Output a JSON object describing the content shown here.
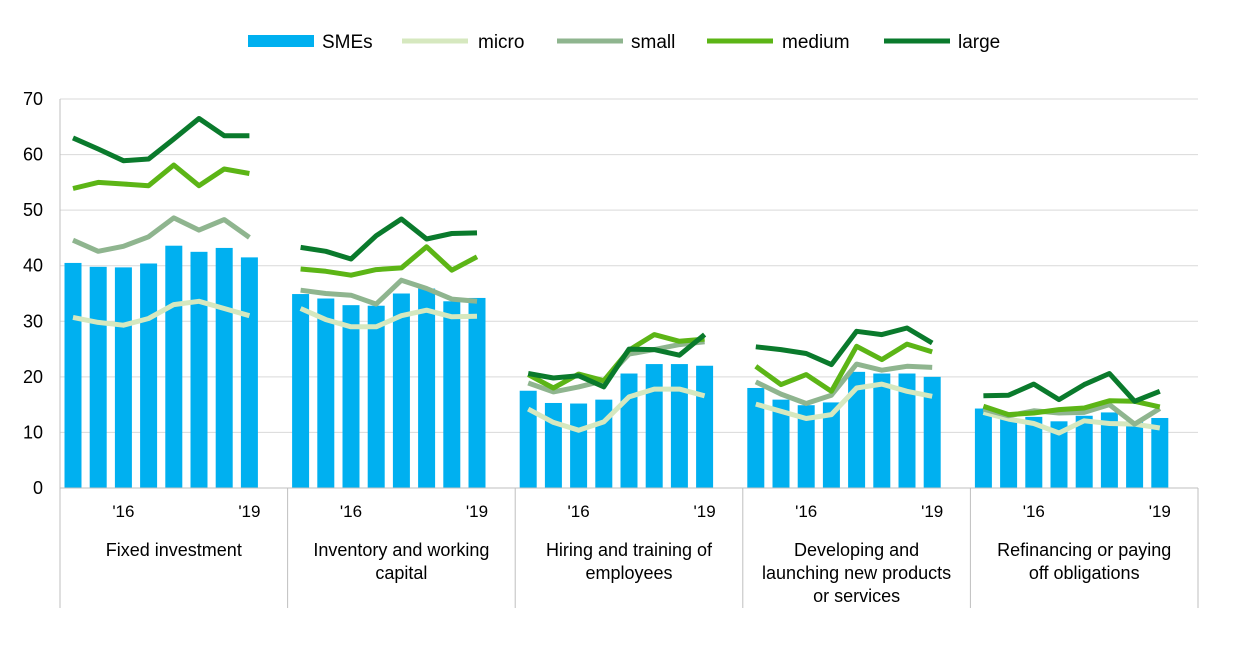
{
  "chart_data": {
    "type": "bar",
    "title": "",
    "xlabel": "",
    "ylabel": "",
    "ylim": [
      0,
      70
    ],
    "yticks": [
      0,
      10,
      20,
      30,
      40,
      50,
      60,
      70
    ],
    "grid": true,
    "legend_position": "top-center",
    "year_labels": [
      "'16",
      "'19"
    ],
    "groups": [
      {
        "label_lines": [
          "Fixed investment"
        ],
        "SMEs": [
          40.5,
          39.8,
          39.7,
          40.4,
          43.6,
          42.5,
          43.2,
          41.5
        ],
        "micro": [
          30.7,
          29.8,
          29.3,
          30.5,
          33.0,
          33.6,
          32.3,
          31.0
        ],
        "small": [
          44.6,
          42.6,
          43.5,
          45.2,
          48.6,
          46.4,
          48.3,
          45.1
        ],
        "medium": [
          53.9,
          55.0,
          54.7,
          54.4,
          58.1,
          54.4,
          57.4,
          56.6
        ],
        "large": [
          63.0,
          61.0,
          58.9,
          59.2,
          62.8,
          66.5,
          63.4,
          63.4
        ]
      },
      {
        "label_lines": [
          "Inventory and working",
          "capital"
        ],
        "SMEs": [
          34.9,
          34.1,
          32.9,
          32.8,
          35.0,
          35.9,
          33.6,
          34.2
        ],
        "micro": [
          32.3,
          30.3,
          29.0,
          29.0,
          31.0,
          32.0,
          30.8,
          30.9
        ],
        "small": [
          35.6,
          35.0,
          34.7,
          33.1,
          37.4,
          35.9,
          34.0,
          33.6
        ],
        "medium": [
          39.4,
          39.0,
          38.3,
          39.3,
          39.6,
          43.4,
          39.2,
          41.6
        ],
        "large": [
          43.3,
          42.6,
          41.2,
          45.4,
          48.4,
          44.8,
          45.8,
          45.9
        ]
      },
      {
        "label_lines": [
          "Hiring and training of",
          "employees"
        ],
        "SMEs": [
          17.5,
          15.3,
          15.2,
          15.9,
          20.6,
          22.3,
          22.3,
          22.0
        ],
        "micro": [
          14.2,
          11.8,
          10.4,
          11.9,
          16.4,
          17.8,
          17.8,
          16.6
        ],
        "small": [
          18.9,
          17.3,
          18.2,
          19.3,
          24.1,
          24.9,
          25.8,
          26.3
        ],
        "medium": [
          20.4,
          18.0,
          20.5,
          19.3,
          24.8,
          27.6,
          26.4,
          26.8
        ],
        "large": [
          20.6,
          19.8,
          20.2,
          18.2,
          25.0,
          24.9,
          23.9,
          27.6
        ]
      },
      {
        "label_lines": [
          "Developing and",
          "launching new products",
          "or services"
        ],
        "SMEs": [
          18.0,
          15.9,
          14.9,
          15.4,
          20.9,
          20.6,
          20.6,
          20.0
        ],
        "micro": [
          15.1,
          13.8,
          12.5,
          13.2,
          18.0,
          18.7,
          17.4,
          16.5
        ],
        "small": [
          19.1,
          16.9,
          15.2,
          16.7,
          22.3,
          21.2,
          21.9,
          21.7
        ],
        "medium": [
          21.9,
          18.6,
          20.4,
          17.4,
          25.5,
          23.1,
          25.9,
          24.5
        ],
        "large": [
          25.4,
          24.9,
          24.2,
          22.2,
          28.2,
          27.6,
          28.8,
          26.1
        ]
      },
      {
        "label_lines": [
          "Refinancing or paying",
          "off obligations"
        ],
        "SMEs": [
          14.3,
          12.5,
          12.8,
          12.0,
          13.0,
          13.6,
          12.0,
          12.6
        ],
        "micro": [
          13.6,
          12.4,
          11.6,
          9.9,
          12.1,
          11.6,
          11.5,
          10.8
        ],
        "small": [
          14.2,
          13.0,
          13.9,
          13.5,
          13.6,
          15.0,
          11.5,
          14.3
        ],
        "medium": [
          14.7,
          13.2,
          13.5,
          14.1,
          14.4,
          15.7,
          15.6,
          14.6
        ],
        "large": [
          16.6,
          16.7,
          18.7,
          15.9,
          18.6,
          20.6,
          15.6,
          17.4
        ]
      }
    ],
    "series": [
      {
        "name": "SMEs",
        "kind": "bar",
        "color": "#00b0f0"
      },
      {
        "name": "micro",
        "kind": "line",
        "color": "#d6e8bf"
      },
      {
        "name": "small",
        "kind": "line",
        "color": "#8fb58f"
      },
      {
        "name": "medium",
        "kind": "line",
        "color": "#5cb516"
      },
      {
        "name": "large",
        "kind": "line",
        "color": "#0a7a2c"
      }
    ]
  }
}
